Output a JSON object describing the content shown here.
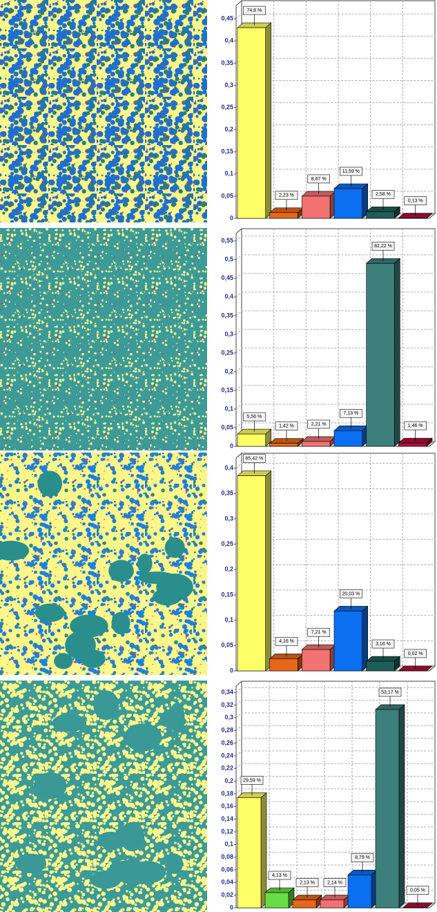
{
  "chart_data": [
    {
      "type": "bar3d",
      "categories": [
        null,
        null,
        null,
        null,
        null,
        null
      ],
      "values": [
        0.43,
        0.0128,
        0.05,
        0.067,
        0.015,
        0.0007
      ],
      "annotations": [
        "74,8 %",
        "2,23 %",
        "8,67 %",
        "11,59 %",
        "2,58 %",
        "0,13 %"
      ],
      "colors": [
        "#ffff66",
        "#e8661a",
        "#f27272",
        "#0a6ff0",
        "#1e5e58",
        "#b0103a"
      ],
      "ylim": [
        0,
        0.48
      ],
      "yticks": [
        0,
        {
          "value": 0.05,
          "label": "0,05"
        },
        {
          "value": 0.1,
          "label": "0,1"
        },
        {
          "value": 0.15,
          "label": "0,15"
        },
        {
          "value": 0.2,
          "label": "0,2"
        },
        {
          "value": 0.25,
          "label": "0,25"
        },
        {
          "value": 0.3,
          "label": "0,3"
        },
        {
          "value": 0.35,
          "label": "0,35"
        },
        {
          "value": 0.4,
          "label": "0,4"
        },
        {
          "value": 0.45,
          "label": "0,45"
        }
      ],
      "grid": true
    },
    {
      "type": "bar3d",
      "categories": [
        null,
        null,
        null,
        null,
        null,
        null
      ],
      "values": [
        0.033,
        0.008,
        0.013,
        0.042,
        0.49,
        0.009
      ],
      "annotations": [
        "5,56 %",
        "1,42 %",
        "2,21 %",
        "7,13 %",
        "82,22 %",
        "1,46 %"
      ],
      "colors": [
        "#ffff66",
        "#e8661a",
        "#f27272",
        "#0a6ff0",
        "#3d7f7a",
        "#b0103a"
      ],
      "ylim": [
        0,
        0.57
      ],
      "yticks": [
        0,
        {
          "value": 0.05,
          "label": "0,05"
        },
        {
          "value": 0.1,
          "label": "0,1"
        },
        {
          "value": 0.15,
          "label": "0,15"
        },
        {
          "value": 0.2,
          "label": "0,2"
        },
        {
          "value": 0.25,
          "label": "0,25"
        },
        {
          "value": 0.3,
          "label": "0,3"
        },
        {
          "value": 0.35,
          "label": "0,35"
        },
        {
          "value": 0.4,
          "label": "0,4"
        },
        {
          "value": 0.45,
          "label": "0,45"
        },
        {
          "value": 0.5,
          "label": "0,5"
        },
        {
          "value": 0.55,
          "label": "0,55"
        }
      ],
      "grid": true
    },
    {
      "type": "bar3d",
      "categories": [
        null,
        null,
        null,
        null,
        null,
        null
      ],
      "values": [
        0.385,
        0.024,
        0.042,
        0.118,
        0.019,
        0.0001
      ],
      "annotations": [
        "65,42 %",
        "4,16 %",
        "7,21 %",
        "20,03 %",
        "3,16 %",
        "0,02 %"
      ],
      "colors": [
        "#ffff66",
        "#e8661a",
        "#f27272",
        "#0a6ff0",
        "#1e5e58",
        "#b0103a"
      ],
      "ylim": [
        0,
        0.42
      ],
      "yticks": [
        0,
        {
          "value": 0.05,
          "label": "0,05"
        },
        {
          "value": 0.1,
          "label": "0,1"
        },
        {
          "value": 0.15,
          "label": "0,15"
        },
        {
          "value": 0.2,
          "label": "0,2"
        },
        {
          "value": 0.25,
          "label": "0,25"
        },
        {
          "value": 0.3,
          "label": "0,3"
        },
        {
          "value": 0.35,
          "label": "0,35"
        },
        {
          "value": 0.4,
          "label": "0,4"
        }
      ],
      "grid": true
    },
    {
      "type": "bar3d",
      "categories": [
        null,
        null,
        null,
        null,
        null,
        null,
        null
      ],
      "values": [
        0.174,
        0.024,
        0.0125,
        0.0126,
        0.052,
        0.313,
        0.0003
      ],
      "annotations": [
        "29,59 %",
        "4,13 %",
        "2,13 %",
        "2,14 %",
        "8,79 %",
        "53,17 %",
        "0,05 %"
      ],
      "colors": [
        "#ffff66",
        "#66dd44",
        "#e8661a",
        "#f27272",
        "#0a6ff0",
        "#3d7f7a",
        "#b0103a"
      ],
      "ylim": [
        0,
        0.35
      ],
      "yticks": [
        0,
        {
          "value": 0.02,
          "label": "0,02"
        },
        {
          "value": 0.04,
          "label": "0,04"
        },
        {
          "value": 0.06,
          "label": "0,06"
        },
        {
          "value": 0.08,
          "label": "0,08"
        },
        {
          "value": 0.1,
          "label": "0,1"
        },
        {
          "value": 0.12,
          "label": "0,12"
        },
        {
          "value": 0.14,
          "label": "0,14"
        },
        {
          "value": 0.16,
          "label": "0,16"
        },
        {
          "value": 0.18,
          "label": "0,18"
        },
        {
          "value": 0.2,
          "label": "0,2"
        },
        {
          "value": 0.22,
          "label": "0,22"
        },
        {
          "value": 0.24,
          "label": "0,24"
        },
        {
          "value": 0.26,
          "label": "0,26"
        },
        {
          "value": 0.28,
          "label": "0,28"
        },
        {
          "value": 0.3,
          "label": "0,3"
        },
        {
          "value": 0.32,
          "label": "0,32"
        },
        {
          "value": 0.34,
          "label": "0,34"
        }
      ],
      "grid": true
    }
  ]
}
